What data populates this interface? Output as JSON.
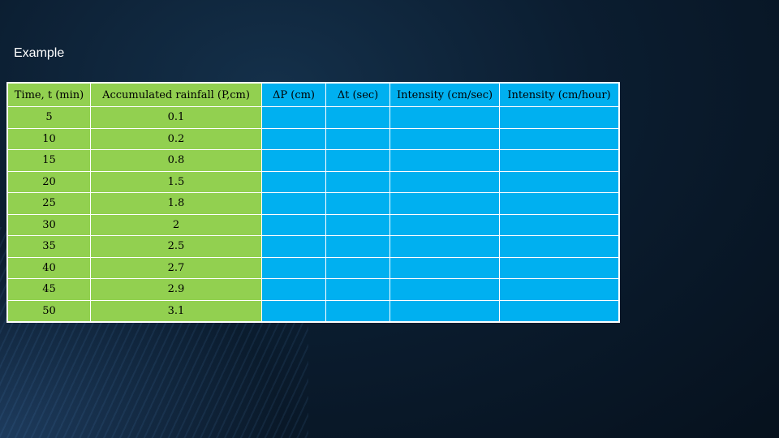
{
  "slide": {
    "title": "Example"
  },
  "table": {
    "headers": [
      "Time, t (min)",
      "Accumulated rainfall (P,cm)",
      "ΔP (cm)",
      "Δt (sec)",
      "Intensity (cm/sec)",
      "Intensity (cm/hour)"
    ],
    "rows": [
      [
        "5",
        "0.1",
        "",
        "",
        "",
        ""
      ],
      [
        "10",
        "0.2",
        "",
        "",
        "",
        ""
      ],
      [
        "15",
        "0.8",
        "",
        "",
        "",
        ""
      ],
      [
        "20",
        "1.5",
        "",
        "",
        "",
        ""
      ],
      [
        "25",
        "1.8",
        "",
        "",
        "",
        ""
      ],
      [
        "30",
        "2",
        "",
        "",
        "",
        ""
      ],
      [
        "35",
        "2.5",
        "",
        "",
        "",
        ""
      ],
      [
        "40",
        "2.7",
        "",
        "",
        "",
        ""
      ],
      [
        "45",
        "2.9",
        "",
        "",
        "",
        ""
      ],
      [
        "50",
        "3.1",
        "",
        "",
        "",
        ""
      ]
    ]
  },
  "colors": {
    "green": "#92d050",
    "blue": "#00b0f0",
    "background": "#0b1d30"
  }
}
